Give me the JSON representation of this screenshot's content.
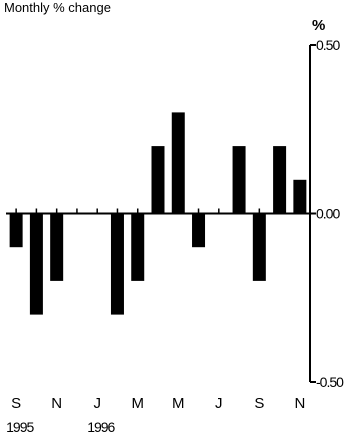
{
  "chart_data": {
    "type": "bar",
    "subtitle": "Monthly % change",
    "ylabel": "%",
    "ylim": [
      -0.5,
      0.5
    ],
    "yticks": [
      0.5,
      0.0,
      -0.5
    ],
    "ytick_labels": [
      "0.50",
      "0.00",
      "-0.50"
    ],
    "categories": [
      "Sep 1995",
      "Oct 1995",
      "Nov 1995",
      "Dec 1995",
      "Jan 1996",
      "Feb 1996",
      "Mar 1996",
      "Apr 1996",
      "May 1996",
      "Jun 1996",
      "Jul 1996",
      "Aug 1996",
      "Sep 1996",
      "Oct 1996",
      "Nov 1996"
    ],
    "values": [
      -0.1,
      -0.3,
      -0.2,
      0.0,
      0.0,
      -0.3,
      -0.2,
      0.2,
      0.3,
      -0.1,
      0.0,
      0.2,
      -0.2,
      0.2,
      0.1
    ],
    "xtick_labels": [
      "S",
      "N",
      "J",
      "M",
      "M",
      "J",
      "S",
      "N"
    ],
    "xtick_indices": [
      0,
      2,
      4,
      6,
      8,
      10,
      12,
      14
    ],
    "year_labels": [
      "1995",
      "1996"
    ],
    "year_label_indices": [
      0,
      4
    ],
    "bar_color": "#000000",
    "grid": false,
    "legend": "none"
  }
}
